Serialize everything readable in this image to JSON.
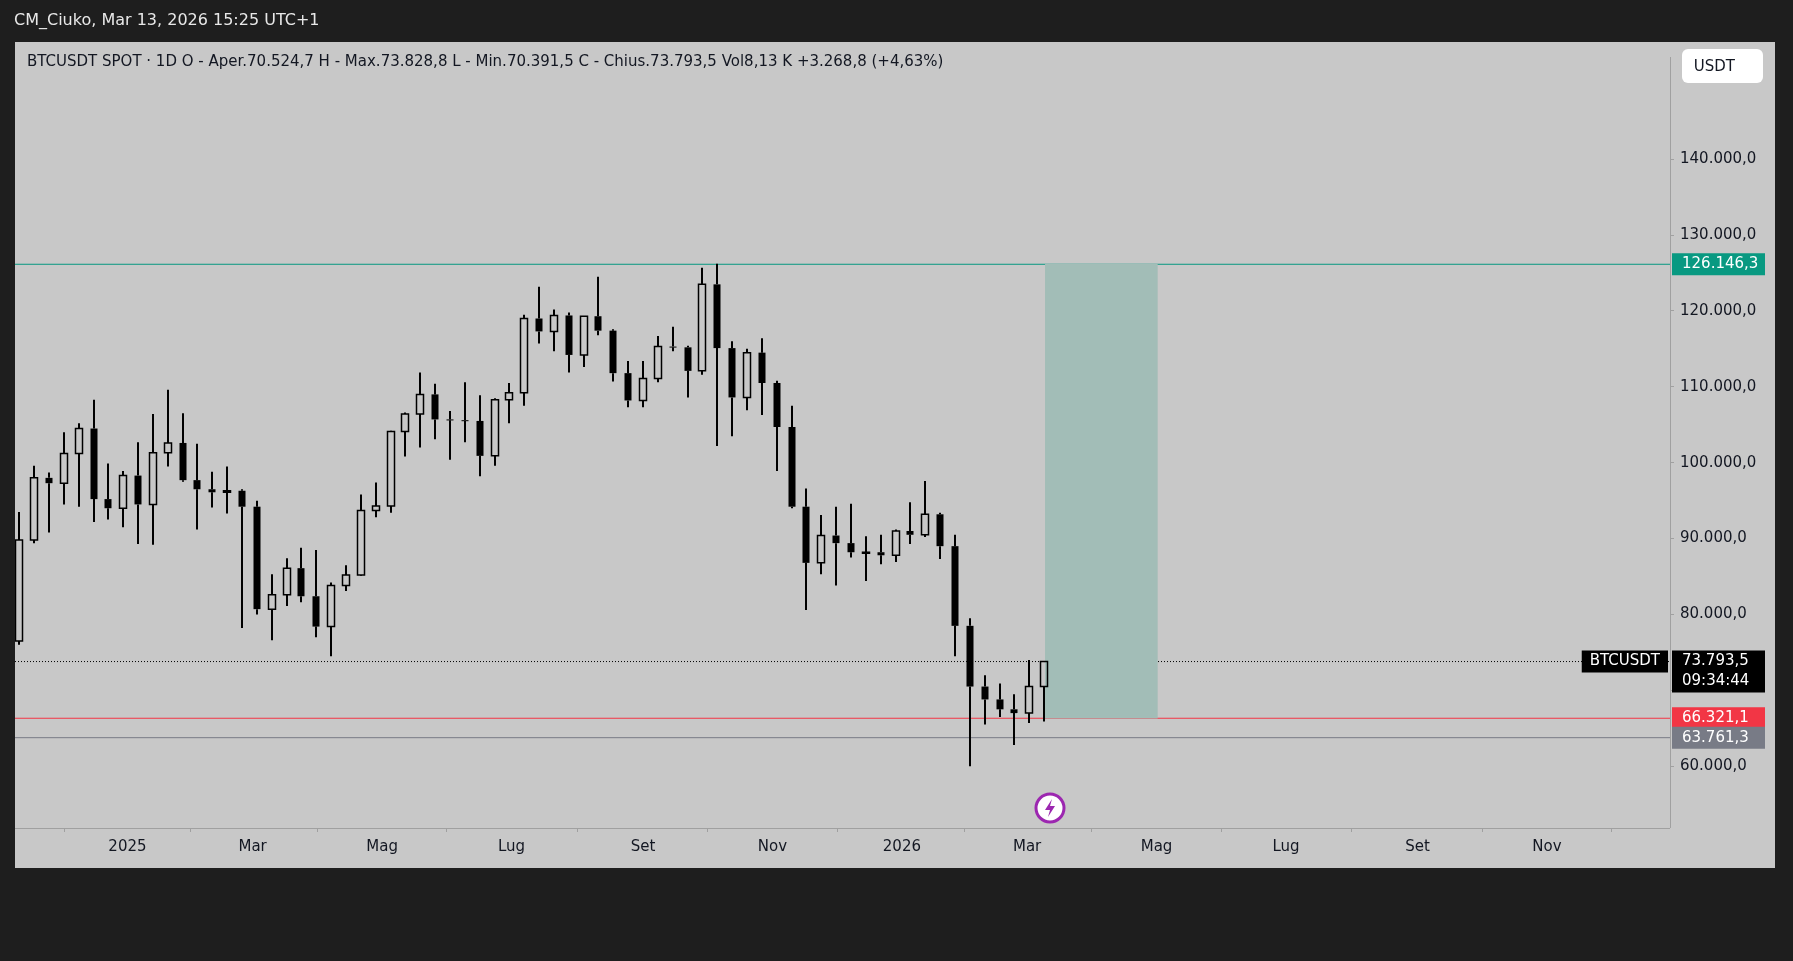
{
  "chart_data": {
    "type": "candlestick",
    "title": "BTCUSDT SPOT · 1D  O - Aper.70.524,7  H - Max.73.828,8  L - Min.70.391,5  C - Chius.73.793,5  Vol8,13 K  +3.268,8 (+4,63%)",
    "subtitle": "CM_Ciuko, Mar 13, 2026 15:25 UTC+1",
    "annotations": [
      "BTCUSDT",
      "09:34:44",
      "USDT"
    ],
    "xlim": [
      "2024-11-09",
      "2026-12-29"
    ],
    "xticks": [
      {
        "value": "2025-01-01",
        "label": "2025"
      },
      {
        "value": "2025-03-01",
        "label": "Mar"
      },
      {
        "value": "2025-05-01",
        "label": "Mag"
      },
      {
        "value": "2025-07-01",
        "label": "Lug"
      },
      {
        "value": "2025-09-01",
        "label": "Set"
      },
      {
        "value": "2025-11-01",
        "label": "Nov"
      },
      {
        "value": "2026-01-01",
        "label": "2026"
      },
      {
        "value": "2026-03-01",
        "label": "Mar"
      },
      {
        "value": "2026-05-01",
        "label": "Mag"
      },
      {
        "value": "2026-07-01",
        "label": "Lug"
      },
      {
        "value": "2026-09-01",
        "label": "Set"
      },
      {
        "value": "2026-11-01",
        "label": "Nov"
      }
    ],
    "ylim": [
      51860,
      153460
    ],
    "yticks": [
      {
        "value": 60000,
        "label": "60.000,0"
      },
      {
        "value": 70000,
        "label": null
      },
      {
        "value": 80000,
        "label": "80.000,0"
      },
      {
        "value": 90000,
        "label": "90.000,0"
      },
      {
        "value": 100000,
        "label": "100.000,0"
      },
      {
        "value": 110000,
        "label": "110.000,0"
      },
      {
        "value": 120000,
        "label": "120.000,0"
      },
      {
        "value": 130000,
        "label": "130.000,0"
      },
      {
        "value": 140000,
        "label": "140.000,0"
      }
    ],
    "grid": false,
    "legend": false,
    "series": [
      {
        "type": "candlestick",
        "color": "#000000",
        "x": [
          "2024-11-11",
          "2024-11-18",
          "2024-11-25",
          "2024-12-02",
          "2024-12-09",
          "2024-12-16",
          "2024-12-23",
          "2024-12-30",
          "2025-01-06",
          "2025-01-13",
          "2025-01-20",
          "2025-01-27",
          "2025-02-03",
          "2025-02-10",
          "2025-02-17",
          "2025-02-24",
          "2025-03-03",
          "2025-03-10",
          "2025-03-17",
          "2025-03-24",
          "2025-03-31",
          "2025-04-07",
          "2025-04-14",
          "2025-04-21",
          "2025-04-28",
          "2025-05-05",
          "2025-05-12",
          "2025-05-19",
          "2025-05-26",
          "2025-06-02",
          "2025-06-09",
          "2025-06-16",
          "2025-06-23",
          "2025-06-30",
          "2025-07-07",
          "2025-07-14",
          "2025-07-21",
          "2025-07-28",
          "2025-08-04",
          "2025-08-11",
          "2025-08-18",
          "2025-08-25",
          "2025-09-01",
          "2025-09-08",
          "2025-09-15",
          "2025-09-22",
          "2025-09-29",
          "2025-10-06",
          "2025-10-13",
          "2025-10-20",
          "2025-10-27",
          "2025-11-03",
          "2025-11-10",
          "2025-11-17",
          "2025-11-24",
          "2025-12-01",
          "2025-12-08",
          "2025-12-15",
          "2025-12-22",
          "2025-12-29",
          "2026-01-05",
          "2026-01-12",
          "2026-01-19",
          "2026-01-26",
          "2026-02-02",
          "2026-02-09",
          "2026-02-16",
          "2026-02-23",
          "2026-03-02",
          "2026-03-09"
        ],
        "ohlc": [
          [
            76500,
            93500,
            76000,
            89800
          ],
          [
            89800,
            99600,
            89400,
            98000
          ],
          [
            98000,
            98700,
            90800,
            97300
          ],
          [
            97300,
            104000,
            94500,
            101200
          ],
          [
            101200,
            105200,
            94200,
            104500
          ],
          [
            104500,
            108300,
            92200,
            95200
          ],
          [
            95200,
            99900,
            92500,
            94000
          ],
          [
            94000,
            98900,
            91500,
            98300
          ],
          [
            98300,
            102700,
            89300,
            94500
          ],
          [
            94500,
            106400,
            89200,
            101300
          ],
          [
            101300,
            109600,
            99500,
            102600
          ],
          [
            102600,
            106500,
            97500,
            97700
          ],
          [
            97700,
            102500,
            91200,
            96500
          ],
          [
            96500,
            98800,
            94100,
            96100
          ],
          [
            96100,
            99500,
            93300,
            96300
          ],
          [
            96300,
            96500,
            78200,
            94200
          ],
          [
            94200,
            95000,
            80000,
            80700
          ],
          [
            80700,
            85300,
            76600,
            82600
          ],
          [
            82600,
            87400,
            81100,
            86100
          ],
          [
            86100,
            88800,
            81600,
            82400
          ],
          [
            82400,
            88500,
            77000,
            78400
          ],
          [
            78400,
            84200,
            74500,
            83800
          ],
          [
            83800,
            86500,
            83100,
            85200
          ],
          [
            85200,
            95800,
            85100,
            93700
          ],
          [
            93700,
            97400,
            92800,
            94300
          ],
          [
            94300,
            104200,
            93400,
            104100
          ],
          [
            104100,
            106600,
            100800,
            106400
          ],
          [
            106400,
            111900,
            102000,
            109000
          ],
          [
            109000,
            110400,
            103100,
            105700
          ],
          [
            105700,
            106800,
            100400,
            105600
          ],
          [
            105600,
            110600,
            102700,
            105500
          ],
          [
            105500,
            108900,
            98200,
            100900
          ],
          [
            100900,
            108500,
            99600,
            108300
          ],
          [
            108300,
            110500,
            105200,
            109200
          ],
          [
            109200,
            119500,
            107500,
            119000
          ],
          [
            119000,
            123200,
            115700,
            117300
          ],
          [
            117300,
            120200,
            114700,
            119400
          ],
          [
            119400,
            119800,
            111900,
            114200
          ],
          [
            114200,
            119300,
            112600,
            119300
          ],
          [
            119300,
            124500,
            116800,
            117400
          ],
          [
            117400,
            117600,
            110700,
            111800
          ],
          [
            111800,
            113400,
            107300,
            108200
          ],
          [
            108200,
            113400,
            107300,
            111100
          ],
          [
            111100,
            116700,
            110600,
            115300
          ],
          [
            115300,
            117900,
            114700,
            115200
          ],
          [
            115200,
            115400,
            108600,
            112100
          ],
          [
            112100,
            125700,
            111600,
            123500
          ],
          [
            123500,
            126200,
            102200,
            115100
          ],
          [
            115100,
            116000,
            103500,
            108600
          ],
          [
            108600,
            115000,
            106900,
            114500
          ],
          [
            114500,
            116400,
            106300,
            110500
          ],
          [
            110500,
            110800,
            98900,
            104700
          ],
          [
            104700,
            107500,
            94000,
            94200
          ],
          [
            94200,
            96600,
            80600,
            86800
          ],
          [
            86800,
            93100,
            85300,
            90400
          ],
          [
            90400,
            94200,
            83800,
            89400
          ],
          [
            89400,
            94600,
            87500,
            88200
          ],
          [
            88200,
            90300,
            84400,
            88200
          ],
          [
            88200,
            90500,
            86600,
            87800
          ],
          [
            87800,
            91200,
            86900,
            91000
          ],
          [
            91000,
            94800,
            89300,
            90500
          ],
          [
            90500,
            97600,
            90200,
            93200
          ],
          [
            93200,
            93400,
            87300,
            89000
          ],
          [
            89000,
            90500,
            74500,
            78500
          ],
          [
            78500,
            79500,
            60000,
            70500
          ],
          [
            70500,
            72000,
            65500,
            68800
          ],
          [
            68800,
            70900,
            66500,
            67500
          ],
          [
            67500,
            69500,
            62800,
            67000
          ],
          [
            67000,
            74000,
            65700,
            70500
          ],
          [
            70500,
            73828.8,
            65900,
            73793.5
          ]
        ]
      },
      {
        "type": "bar",
        "color": "#a2bdb7",
        "x": [
          "2026-04-05"
        ],
        "base": [
          66321.1
        ],
        "values": [
          59825.2
        ]
      }
    ],
    "ref_lines": [
      {
        "axis": "y",
        "value": 126146.3,
        "label": "126.146,3",
        "color": "#089981",
        "line_style": "solid"
      },
      {
        "axis": "y",
        "value": 73793.5,
        "label": "73.793,5",
        "color": "#000000",
        "line_style": "dotted"
      },
      {
        "axis": "y",
        "value": 66321.1,
        "label": "66.321,1",
        "color": "#f23645",
        "line_style": "solid"
      },
      {
        "axis": "y",
        "value": 63761.3,
        "label": "63.761,3",
        "color": "#787b86",
        "line_style": "solid"
      }
    ]
  }
}
